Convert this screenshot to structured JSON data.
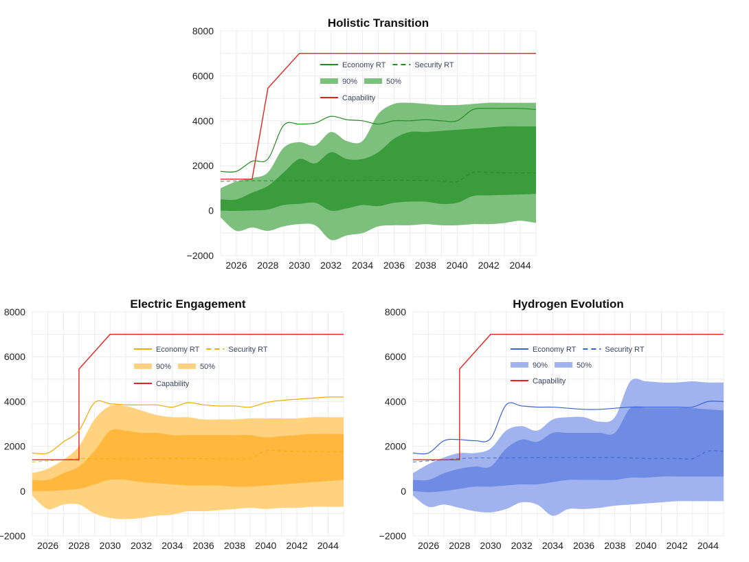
{
  "chart_data": [
    {
      "id": "holistic",
      "type": "area",
      "title": "Holistic Transition",
      "color": "#228b22",
      "band90_color": "#7dbf7d",
      "band50_color": "#3a9c3a",
      "capability_color": "#e8201c",
      "xlim": [
        2025,
        2045
      ],
      "ylim": [
        -2000,
        8000
      ],
      "xticks": [
        2026,
        2028,
        2030,
        2032,
        2034,
        2036,
        2038,
        2040,
        2042,
        2044
      ],
      "yticks": [
        -2000,
        0,
        2000,
        4000,
        6000,
        8000
      ],
      "grid": true,
      "legend_placement": "top-left inside plot",
      "legend": {
        "economy": "Economy RT",
        "security": "Security RT",
        "p90": "90%",
        "p50": "50%",
        "capability": "Capability"
      },
      "capability": {
        "x": [
          2025,
          2027,
          2028,
          2030,
          2045
        ],
        "y": [
          1400,
          1400,
          5450,
          7000,
          7000
        ]
      },
      "x": [
        2025,
        2026,
        2027,
        2028,
        2029,
        2030,
        2031,
        2032,
        2033,
        2034,
        2035,
        2036,
        2037,
        2038,
        2039,
        2040,
        2041,
        2042,
        2043,
        2044,
        2045
      ],
      "series": [
        {
          "name": "Economy RT",
          "values": [
            1750,
            1750,
            2200,
            2300,
            3800,
            3850,
            3900,
            4200,
            4050,
            4000,
            3850,
            4000,
            4000,
            4050,
            4000,
            4000,
            4500,
            4550,
            4550,
            4550,
            4500
          ]
        },
        {
          "name": "Security RT",
          "values": [
            1300,
            1320,
            1330,
            1330,
            1330,
            1330,
            1330,
            1330,
            1340,
            1340,
            1350,
            1350,
            1350,
            1340,
            1320,
            1300,
            1700,
            1700,
            1680,
            1680,
            1680
          ]
        }
      ],
      "band90_low": [
        -300,
        -900,
        -750,
        -900,
        -700,
        -600,
        -650,
        -1300,
        -1100,
        -1000,
        -700,
        -650,
        -650,
        -600,
        -650,
        -650,
        -600,
        -600,
        -550,
        -450,
        -550
      ],
      "band90_high": [
        1000,
        1300,
        1450,
        1700,
        2800,
        3050,
        2900,
        3500,
        3100,
        3100,
        4300,
        4750,
        4800,
        4750,
        4700,
        4700,
        4750,
        4800,
        4800,
        4800,
        4800
      ],
      "band50_low": [
        0,
        -10,
        10,
        50,
        250,
        300,
        350,
        0,
        100,
        250,
        200,
        350,
        400,
        400,
        300,
        350,
        650,
        680,
        700,
        720,
        750
      ],
      "band50_high": [
        500,
        500,
        800,
        1100,
        1700,
        2300,
        2100,
        2600,
        2300,
        2300,
        2600,
        3200,
        3500,
        3500,
        3550,
        3600,
        3650,
        3700,
        3750,
        3750,
        3750
      ]
    },
    {
      "id": "electric",
      "type": "area",
      "title": "Electric Engagement",
      "color": "#f4a900",
      "band90_color": "#ffd27f",
      "band50_color": "#ffb83d",
      "capability_color": "#e8201c",
      "xlim": [
        2025,
        2045
      ],
      "ylim": [
        -2000,
        8000
      ],
      "xticks": [
        2026,
        2028,
        2030,
        2032,
        2034,
        2036,
        2038,
        2040,
        2042,
        2044
      ],
      "yticks": [
        -2000,
        0,
        2000,
        4000,
        6000,
        8000
      ],
      "grid": true,
      "legend_placement": "top-center inside plot",
      "legend": {
        "economy": "Economy RT",
        "security": "Security RT",
        "p90": "90%",
        "p50": "50%",
        "capability": "Capability"
      },
      "capability": {
        "x": [
          2025,
          2028,
          2028,
          2030,
          2045
        ],
        "y": [
          1400,
          1400,
          5450,
          7000,
          7000
        ]
      },
      "x": [
        2025,
        2026,
        2027,
        2028,
        2029,
        2030,
        2031,
        2032,
        2033,
        2034,
        2035,
        2036,
        2037,
        2038,
        2039,
        2040,
        2041,
        2042,
        2043,
        2044,
        2045
      ],
      "series": [
        {
          "name": "Economy RT",
          "values": [
            1700,
            1700,
            2200,
            2700,
            3950,
            3900,
            3850,
            3850,
            3850,
            3750,
            3950,
            3850,
            3800,
            3800,
            3750,
            3950,
            4050,
            4100,
            4150,
            4200,
            4200
          ]
        },
        {
          "name": "Security RT",
          "values": [
            1300,
            1350,
            1400,
            1450,
            1450,
            1450,
            1450,
            1450,
            1460,
            1460,
            1460,
            1450,
            1450,
            1450,
            1450,
            1800,
            1800,
            1780,
            1770,
            1760,
            1760
          ]
        }
      ],
      "band90_low": [
        -200,
        -800,
        -600,
        -600,
        -1000,
        -1200,
        -1250,
        -1200,
        -1100,
        -1050,
        -900,
        -900,
        -850,
        -800,
        -750,
        -800,
        -750,
        -750,
        -700,
        -700,
        -700
      ],
      "band90_high": [
        800,
        1000,
        1400,
        2000,
        3200,
        3800,
        3800,
        3600,
        3400,
        3300,
        3300,
        3200,
        3200,
        3200,
        3250,
        3250,
        3250,
        3250,
        3300,
        3300,
        3300
      ],
      "band50_low": [
        0,
        0,
        50,
        100,
        300,
        500,
        500,
        400,
        350,
        300,
        250,
        250,
        250,
        200,
        200,
        250,
        300,
        350,
        400,
        450,
        500
      ],
      "band50_high": [
        500,
        500,
        800,
        1100,
        1800,
        2700,
        2700,
        2600,
        2600,
        2500,
        2500,
        2500,
        2500,
        2500,
        2500,
        2400,
        2450,
        2500,
        2550,
        2550,
        2550
      ]
    },
    {
      "id": "hydrogen",
      "type": "area",
      "title": "Hydrogen Evolution",
      "color": "#3a60d6",
      "band90_color": "#a0b3ee",
      "band50_color": "#6f8be4",
      "capability_color": "#e8201c",
      "xlim": [
        2025,
        2045
      ],
      "ylim": [
        -2000,
        8000
      ],
      "xticks": [
        2026,
        2028,
        2030,
        2032,
        2034,
        2036,
        2038,
        2040,
        2042,
        2044
      ],
      "yticks": [
        -2000,
        0,
        2000,
        4000,
        6000,
        8000
      ],
      "grid": true,
      "legend_placement": "top-center inside plot",
      "legend": {
        "economy": "Economy RT",
        "security": "Security RT",
        "p90": "90%",
        "p50": "50%",
        "capability": "Capability"
      },
      "capability": {
        "x": [
          2025,
          2028,
          2028,
          2030,
          2045
        ],
        "y": [
          1400,
          1400,
          5450,
          7000,
          7000
        ]
      },
      "x": [
        2025,
        2026,
        2027,
        2028,
        2029,
        2030,
        2031,
        2032,
        2033,
        2034,
        2035,
        2036,
        2037,
        2038,
        2039,
        2040,
        2041,
        2042,
        2043,
        2044,
        2045
      ],
      "series": [
        {
          "name": "Economy RT",
          "values": [
            1700,
            1700,
            2250,
            2300,
            2250,
            2350,
            3850,
            3800,
            3750,
            3750,
            3700,
            3650,
            3650,
            3700,
            3750,
            3750,
            3750,
            3750,
            3750,
            4000,
            4000
          ]
        },
        {
          "name": "Security RT",
          "values": [
            1300,
            1350,
            1400,
            1450,
            1480,
            1480,
            1480,
            1490,
            1500,
            1500,
            1500,
            1500,
            1500,
            1500,
            1480,
            1460,
            1460,
            1460,
            1450,
            1780,
            1780
          ]
        }
      ],
      "band90_low": [
        -200,
        -700,
        -600,
        -750,
        -900,
        -950,
        -800,
        -500,
        -600,
        -1100,
        -800,
        -800,
        -750,
        -650,
        -600,
        -550,
        -500,
        -450,
        -450,
        -450,
        -450
      ],
      "band90_high": [
        800,
        1200,
        1500,
        1700,
        1700,
        1900,
        2700,
        2900,
        2700,
        3200,
        3300,
        3300,
        3100,
        3300,
        4900,
        4900,
        4850,
        4850,
        4900,
        4850,
        4850
      ],
      "band50_low": [
        0,
        -50,
        0,
        100,
        200,
        200,
        250,
        300,
        300,
        400,
        500,
        500,
        500,
        500,
        600,
        600,
        650,
        650,
        650,
        650,
        650
      ],
      "band50_high": [
        500,
        500,
        800,
        1000,
        1100,
        1100,
        1900,
        2300,
        2200,
        2600,
        2600,
        2600,
        2600,
        2600,
        3700,
        3700,
        3700,
        3700,
        3700,
        3650,
        3600
      ]
    }
  ]
}
